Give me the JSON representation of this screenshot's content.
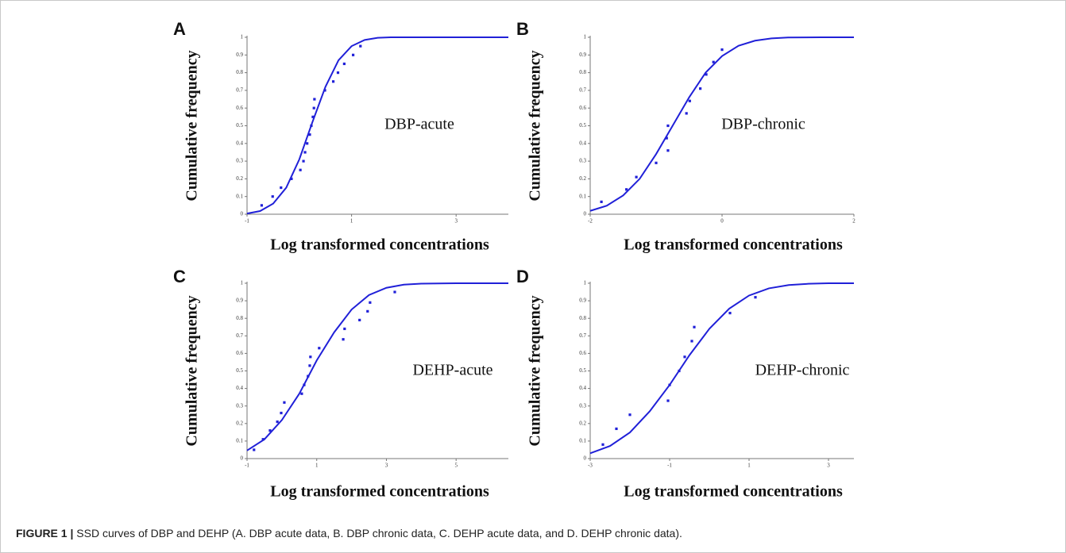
{
  "chart_data": [
    {
      "type": "scatter",
      "panel_label": "A",
      "annotation": "DBP-acute",
      "y_label": "Cumulative frequency",
      "x_label": "Log transformed concentrations",
      "xlim": [
        -1,
        4
      ],
      "xticks": [
        -1,
        1,
        3
      ],
      "ylim": [
        0,
        1
      ],
      "yticks": [
        0,
        0.1,
        0.2,
        0.3,
        0.4,
        0.5,
        0.6,
        0.7,
        0.8,
        0.9,
        1
      ],
      "series": [
        {
          "type": "line",
          "color": "#2020d8",
          "x": [
            -1,
            -0.75,
            -0.5,
            -0.25,
            0,
            0.25,
            0.5,
            0.75,
            1,
            1.25,
            1.5,
            1.75,
            2,
            3,
            4
          ],
          "values": [
            0.004,
            0.018,
            0.06,
            0.15,
            0.31,
            0.52,
            0.72,
            0.87,
            0.95,
            0.985,
            0.997,
            1,
            1,
            1,
            1
          ]
        },
        {
          "type": "scatter",
          "color": "#2020d8",
          "x": [
            -0.72,
            -0.51,
            -0.35,
            -0.15,
            0.02,
            0.08,
            0.11,
            0.15,
            0.2,
            0.23,
            0.26,
            0.28,
            0.29,
            0.49,
            0.65,
            0.74,
            0.86,
            1.03,
            1.17
          ],
          "values": [
            0.05,
            0.1,
            0.15,
            0.2,
            0.25,
            0.3,
            0.35,
            0.4,
            0.45,
            0.5,
            0.55,
            0.6,
            0.65,
            0.7,
            0.75,
            0.8,
            0.85,
            0.9,
            0.95
          ]
        }
      ]
    },
    {
      "type": "scatter",
      "panel_label": "B",
      "annotation": "DBP-chronic",
      "y_label": "Cumulative frequency",
      "x_label": "Log transformed concentrations",
      "xlim": [
        -2,
        2
      ],
      "xticks": [
        -2,
        0,
        2
      ],
      "ylim": [
        0,
        1
      ],
      "yticks": [
        0,
        0.1,
        0.2,
        0.3,
        0.4,
        0.5,
        0.6,
        0.7,
        0.8,
        0.9,
        1
      ],
      "series": [
        {
          "type": "line",
          "color": "#2020d8",
          "x": [
            -2,
            -1.75,
            -1.5,
            -1.25,
            -1,
            -0.75,
            -0.5,
            -0.25,
            0,
            0.25,
            0.5,
            0.75,
            1,
            1.5,
            2
          ],
          "values": [
            0.019,
            0.048,
            0.106,
            0.2,
            0.34,
            0.5,
            0.66,
            0.8,
            0.894,
            0.952,
            0.981,
            0.994,
            0.999,
            1,
            1
          ]
        },
        {
          "type": "scatter",
          "color": "#2020d8",
          "x": [
            -1.83,
            -1.45,
            -1.3,
            -1.0,
            -0.82,
            -0.84,
            -0.82,
            -0.54,
            -0.49,
            -0.33,
            -0.24,
            -0.13,
            0.0
          ],
          "values": [
            0.07,
            0.14,
            0.21,
            0.29,
            0.36,
            0.43,
            0.5,
            0.57,
            0.64,
            0.71,
            0.79,
            0.86,
            0.93
          ]
        }
      ]
    },
    {
      "type": "scatter",
      "panel_label": "C",
      "annotation": "DEHP-acute",
      "y_label": "Cumulative frequency",
      "x_label": "Log transformed concentrations",
      "xlim": [
        -1,
        6.5
      ],
      "xticks": [
        -1,
        1,
        3,
        5
      ],
      "ylim": [
        0,
        1
      ],
      "yticks": [
        0,
        0.1,
        0.2,
        0.3,
        0.4,
        0.5,
        0.6,
        0.7,
        0.8,
        0.9,
        1
      ],
      "series": [
        {
          "type": "line",
          "color": "#2020d8",
          "x": [
            -1,
            -0.5,
            0,
            0.5,
            1,
            1.5,
            2,
            2.5,
            3,
            3.5,
            4,
            5,
            6.5
          ],
          "values": [
            0.046,
            0.11,
            0.22,
            0.37,
            0.56,
            0.72,
            0.85,
            0.933,
            0.974,
            0.992,
            0.998,
            1,
            1
          ]
        },
        {
          "type": "scatter",
          "color": "#2020d8",
          "x": [
            -0.8,
            -0.54,
            -0.34,
            -0.13,
            -0.02,
            0.07,
            0.57,
            0.64,
            0.75,
            0.8,
            0.82,
            1.07,
            1.76,
            1.8,
            2.23,
            2.46,
            2.53,
            3.24
          ],
          "values": [
            0.05,
            0.11,
            0.16,
            0.21,
            0.26,
            0.32,
            0.37,
            0.42,
            0.47,
            0.53,
            0.58,
            0.63,
            0.68,
            0.74,
            0.79,
            0.84,
            0.89,
            0.95
          ]
        }
      ]
    },
    {
      "type": "scatter",
      "panel_label": "D",
      "annotation": "DEHP-chronic",
      "y_label": "Cumulative frequency",
      "x_label": "Log transformed concentrations",
      "xlim": [
        -3,
        3.64
      ],
      "xticks": [
        -3,
        -1,
        1,
        3
      ],
      "ylim": [
        0,
        1
      ],
      "yticks": [
        0,
        0.1,
        0.2,
        0.3,
        0.4,
        0.5,
        0.6,
        0.7,
        0.8,
        0.9,
        1
      ],
      "series": [
        {
          "type": "line",
          "color": "#2020d8",
          "x": [
            -3,
            -2.5,
            -2,
            -1.5,
            -1,
            -0.5,
            0,
            0.5,
            1,
            1.5,
            2,
            2.5,
            3,
            3.64
          ],
          "values": [
            0.03,
            0.072,
            0.149,
            0.27,
            0.42,
            0.59,
            0.74,
            0.855,
            0.93,
            0.971,
            0.99,
            0.997,
            1,
            1
          ]
        },
        {
          "type": "scatter",
          "color": "#2020d8",
          "x": [
            -2.68,
            -2.34,
            -2.0,
            -1.04,
            -1.0,
            -0.76,
            -0.62,
            -0.44,
            -0.38,
            0.52,
            1.16
          ],
          "values": [
            0.08,
            0.17,
            0.25,
            0.33,
            0.42,
            0.5,
            0.58,
            0.67,
            0.75,
            0.83,
            0.92
          ]
        }
      ]
    }
  ],
  "caption_label": "FIGURE 1 |",
  "caption": "SSD curves of DBP and DEHP (A. DBP acute data, B. DBP chronic data, C. DEHP acute data, and D. DEHP chronic data)."
}
